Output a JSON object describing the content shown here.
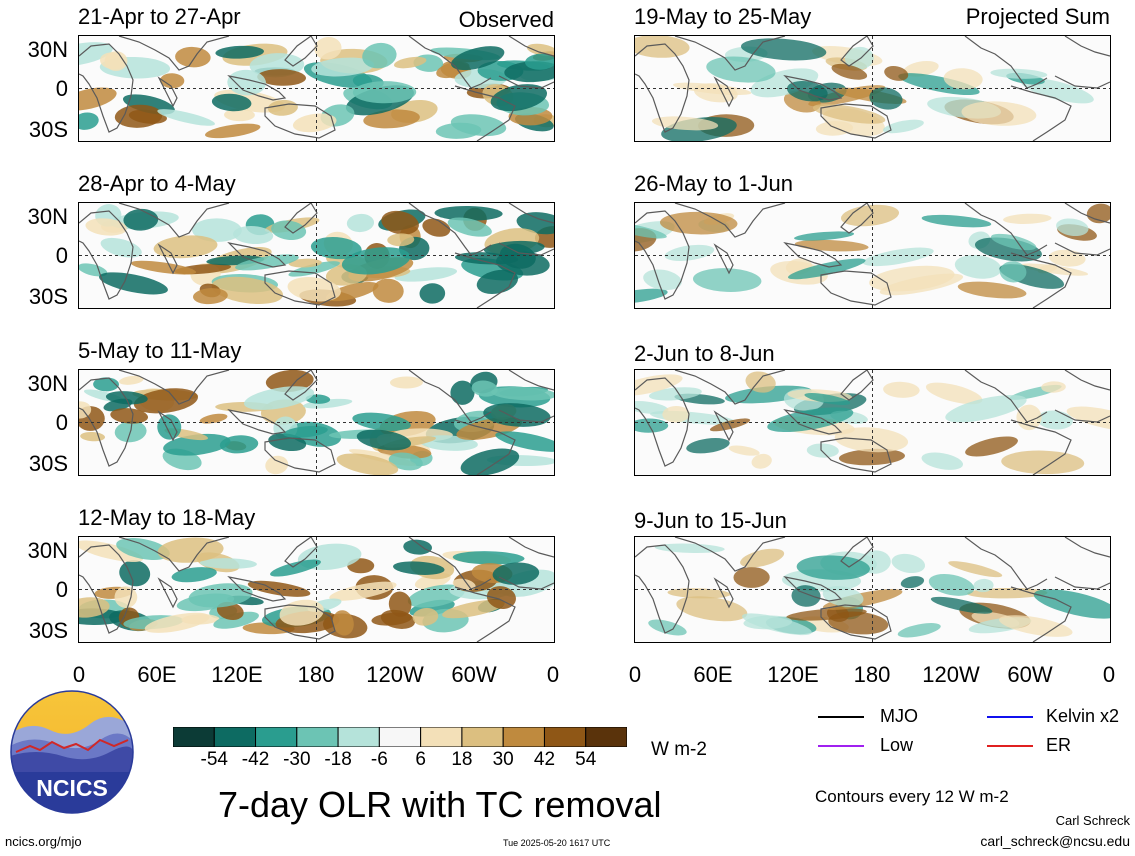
{
  "observed_label": "Observed",
  "projected_label": "Projected Sum",
  "panels": {
    "left": [
      {
        "title": "21-Apr to 27-Apr"
      },
      {
        "title": "28-Apr to 4-May"
      },
      {
        "title": "5-May to 11-May"
      },
      {
        "title": "12-May to 18-May"
      }
    ],
    "right": [
      {
        "title": "19-May to 25-May"
      },
      {
        "title": "26-May to 1-Jun"
      },
      {
        "title": "2-Jun to 8-Jun"
      },
      {
        "title": "9-Jun to 15-Jun"
      }
    ]
  },
  "lat_labels": [
    "30N",
    "0",
    "30S"
  ],
  "lon_labels": [
    "0",
    "60E",
    "120E",
    "180",
    "120W",
    "60W",
    "0"
  ],
  "colorbar": {
    "ticks": [
      "-54",
      "-42",
      "-30",
      "-18",
      "-6",
      "6",
      "18",
      "30",
      "42",
      "54"
    ],
    "colors": [
      "#0c3b36",
      "#0d6b62",
      "#2a9d8f",
      "#6cc4b4",
      "#b5e3da",
      "#f7f7f7",
      "#f3e0b8",
      "#dcbf80",
      "#bf8a3e",
      "#8f5716",
      "#5a330b"
    ],
    "units": "W m-2"
  },
  "legend": {
    "items": [
      {
        "label": "MJO",
        "color": "#000000"
      },
      {
        "label": "Kelvin x2",
        "color": "#1010ee"
      },
      {
        "label": "Low",
        "color": "#a020f0"
      },
      {
        "label": "ER",
        "color": "#e02020"
      }
    ],
    "contours": "Contours every 12 W m-2"
  },
  "logo_text": "NCICS",
  "main_title": "7-day OLR with TC removal",
  "footer": {
    "site": "ncics.org/mjo",
    "timestamp": "Tue 2025-05-20 1617 UTC",
    "author": "Carl Schreck",
    "email": "carl_schreck@ncsu.edu"
  }
}
